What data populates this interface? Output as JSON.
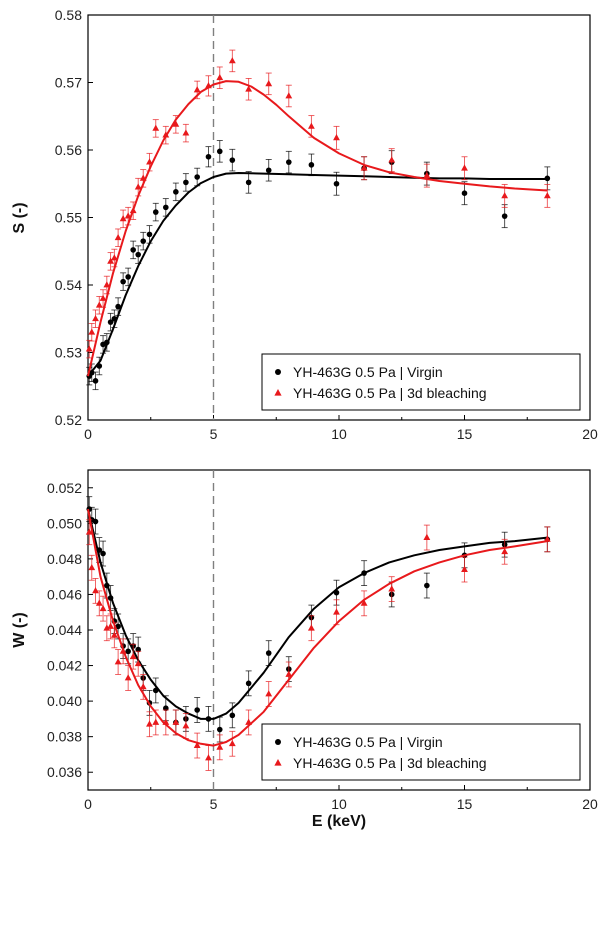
{
  "colors": {
    "virgin": "#000000",
    "bleaching": "#e8191c",
    "vline": "#7f7f7f"
  },
  "chart_data": [
    {
      "type": "scatter",
      "xlabel": "",
      "ylabel": "S (-)",
      "xlim": [
        0,
        20
      ],
      "ylim": [
        0.52,
        0.58
      ],
      "xticks": [
        "0",
        "5",
        "10",
        "15",
        "20"
      ],
      "yticks": [
        "0.52",
        "0.53",
        "0.54",
        "0.55",
        "0.56",
        "0.57",
        "0.58"
      ],
      "vline_x": 5,
      "legend": {
        "placement": "bottom-right",
        "entries": [
          "YH-463G 0.5 Pa | Virgin",
          "YH-463G 0.5 Pa | 3d bleaching"
        ]
      },
      "series": [
        {
          "name": "YH-463G 0.5 Pa | Virgin",
          "marker": "circle",
          "color": "#000000",
          "x": [
            0.05,
            0.15,
            0.3,
            0.45,
            0.6,
            0.75,
            0.9,
            1.05,
            1.2,
            1.4,
            1.6,
            1.8,
            2.0,
            2.2,
            2.45,
            2.7,
            3.1,
            3.5,
            3.9,
            4.35,
            4.8,
            5.25,
            5.75,
            6.4,
            7.2,
            8.0,
            8.9,
            9.9,
            11.0,
            12.1,
            13.5,
            15.0,
            16.6,
            18.3
          ],
          "y": [
            0.5265,
            0.527,
            0.5258,
            0.528,
            0.5312,
            0.5315,
            0.5345,
            0.535,
            0.5368,
            0.5405,
            0.5412,
            0.5452,
            0.5445,
            0.5465,
            0.5475,
            0.5508,
            0.5515,
            0.5538,
            0.5552,
            0.556,
            0.559,
            0.5598,
            0.5585,
            0.5552,
            0.557,
            0.5582,
            0.5578,
            0.555,
            0.5573,
            0.5582,
            0.5565,
            0.5536,
            0.5502,
            0.5558
          ],
          "err": [
            0.0013,
            0.0013,
            0.0013,
            0.0013,
            0.0013,
            0.0013,
            0.0013,
            0.0013,
            0.0013,
            0.0013,
            0.0013,
            0.0013,
            0.0013,
            0.0013,
            0.0013,
            0.0013,
            0.0013,
            0.0013,
            0.0013,
            0.0013,
            0.0015,
            0.0016,
            0.0016,
            0.0016,
            0.0016,
            0.0016,
            0.0016,
            0.0017,
            0.0017,
            0.0017,
            0.0017,
            0.0017,
            0.0017,
            0.0017
          ],
          "fit_x": [
            0,
            0.5,
            1,
            1.5,
            2,
            2.5,
            3,
            3.5,
            4,
            4.5,
            5,
            5.5,
            6,
            7,
            8,
            9,
            10,
            11,
            12,
            13,
            14,
            15,
            16,
            17,
            18.3
          ],
          "fit_y": [
            0.5265,
            0.5288,
            0.5335,
            0.5385,
            0.5428,
            0.5465,
            0.5495,
            0.5518,
            0.5537,
            0.5551,
            0.556,
            0.5565,
            0.5566,
            0.5565,
            0.5564,
            0.5563,
            0.5562,
            0.5561,
            0.556,
            0.5559,
            0.5558,
            0.5558,
            0.5557,
            0.5557,
            0.5557
          ]
        },
        {
          "name": "YH-463G 0.5 Pa | 3d bleaching",
          "marker": "triangle",
          "color": "#e8191c",
          "x": [
            0.05,
            0.15,
            0.3,
            0.45,
            0.6,
            0.75,
            0.9,
            1.05,
            1.2,
            1.4,
            1.6,
            1.8,
            2.0,
            2.2,
            2.45,
            2.7,
            3.1,
            3.5,
            3.9,
            4.35,
            4.8,
            5.25,
            5.75,
            6.4,
            7.2,
            8.0,
            8.9,
            9.9,
            11.0,
            12.1,
            13.5,
            15.0,
            16.6,
            18.3
          ],
          "y": [
            0.5305,
            0.533,
            0.535,
            0.537,
            0.538,
            0.54,
            0.5435,
            0.544,
            0.547,
            0.5498,
            0.5502,
            0.551,
            0.5545,
            0.5558,
            0.5582,
            0.5632,
            0.5622,
            0.5638,
            0.5625,
            0.5689,
            0.5695,
            0.5707,
            0.5732,
            0.569,
            0.5698,
            0.568,
            0.5635,
            0.5618,
            0.5573,
            0.5585,
            0.5562,
            0.5573,
            0.5532,
            0.5532
          ],
          "err": [
            0.0013,
            0.0013,
            0.0013,
            0.0013,
            0.0013,
            0.0013,
            0.0013,
            0.0013,
            0.0013,
            0.0013,
            0.0013,
            0.0013,
            0.0013,
            0.0013,
            0.0013,
            0.0013,
            0.0013,
            0.0013,
            0.0013,
            0.0013,
            0.0015,
            0.0016,
            0.0016,
            0.0016,
            0.0016,
            0.0016,
            0.0016,
            0.0017,
            0.0017,
            0.0017,
            0.0017,
            0.0017,
            0.0017,
            0.0017
          ],
          "fit_x": [
            0,
            0.5,
            1,
            1.5,
            2,
            2.5,
            3,
            3.5,
            4,
            4.5,
            5,
            5.5,
            6,
            6.5,
            7,
            7.5,
            8,
            9,
            10,
            11,
            12,
            13,
            14,
            15,
            16,
            17,
            18.3
          ],
          "fit_y": [
            0.5265,
            0.5345,
            0.5418,
            0.548,
            0.5532,
            0.5576,
            0.5614,
            0.5645,
            0.5668,
            0.5686,
            0.5697,
            0.5702,
            0.5701,
            0.5694,
            0.5682,
            0.5667,
            0.565,
            0.5618,
            0.5595,
            0.5578,
            0.5567,
            0.556,
            0.5554,
            0.555,
            0.5546,
            0.5543,
            0.554
          ]
        }
      ]
    },
    {
      "type": "scatter",
      "xlabel": "E (keV)",
      "ylabel": "W (-)",
      "xlim": [
        0,
        20
      ],
      "ylim": [
        0.035,
        0.053
      ],
      "xticks": [
        "0",
        "5",
        "10",
        "15",
        "20"
      ],
      "yticks": [
        "0.036",
        "0.038",
        "0.040",
        "0.042",
        "0.044",
        "0.046",
        "0.048",
        "0.050",
        "0.052"
      ],
      "vline_x": 5,
      "legend": {
        "placement": "bottom-right",
        "entries": [
          "YH-463G 0.5 Pa | Virgin",
          "YH-463G 0.5 Pa | 3d bleaching"
        ]
      },
      "series": [
        {
          "name": "YH-463G 0.5 Pa | Virgin",
          "marker": "circle",
          "color": "#000000",
          "x": [
            0.05,
            0.15,
            0.3,
            0.45,
            0.6,
            0.75,
            0.9,
            1.05,
            1.2,
            1.4,
            1.6,
            1.8,
            2.0,
            2.2,
            2.45,
            2.7,
            3.1,
            3.5,
            3.9,
            4.35,
            4.8,
            5.25,
            5.75,
            6.4,
            7.2,
            8.0,
            8.9,
            9.9,
            11.0,
            12.1,
            13.5,
            15.0,
            16.6,
            18.3
          ],
          "y": [
            0.0508,
            0.0502,
            0.0501,
            0.0485,
            0.0483,
            0.0465,
            0.0458,
            0.0445,
            0.0442,
            0.0431,
            0.0428,
            0.0431,
            0.0429,
            0.0413,
            0.0399,
            0.0406,
            0.0396,
            0.0388,
            0.039,
            0.0395,
            0.039,
            0.0384,
            0.0392,
            0.041,
            0.0427,
            0.0418,
            0.0447,
            0.0461,
            0.0472,
            0.046,
            0.0465,
            0.0482,
            0.0488,
            0.0491
          ],
          "err": [
            0.0007,
            0.0007,
            0.0007,
            0.0007,
            0.0007,
            0.0007,
            0.0007,
            0.0007,
            0.0007,
            0.0007,
            0.0007,
            0.0007,
            0.0007,
            0.0007,
            0.0007,
            0.0007,
            0.0007,
            0.0007,
            0.0007,
            0.0007,
            0.0007,
            0.0007,
            0.0007,
            0.0007,
            0.0007,
            0.0007,
            0.0007,
            0.0007,
            0.0007,
            0.0007,
            0.0007,
            0.0007,
            0.0007,
            0.0007
          ],
          "fit_x": [
            0,
            0.5,
            1,
            1.5,
            2,
            2.5,
            3,
            3.5,
            4,
            4.5,
            5,
            5.5,
            6,
            7,
            8,
            9,
            10,
            11,
            12,
            13,
            14,
            15,
            16,
            17,
            18.3
          ],
          "fit_y": [
            0.0508,
            0.0478,
            0.0455,
            0.0437,
            0.0423,
            0.0412,
            0.0403,
            0.0397,
            0.0393,
            0.039,
            0.039,
            0.0393,
            0.0399,
            0.0416,
            0.0436,
            0.0452,
            0.0464,
            0.0472,
            0.0478,
            0.0482,
            0.0485,
            0.0487,
            0.0489,
            0.049,
            0.0492
          ]
        },
        {
          "name": "YH-463G 0.5 Pa | 3d bleaching",
          "marker": "triangle",
          "color": "#e8191c",
          "x": [
            0.05,
            0.15,
            0.3,
            0.45,
            0.6,
            0.75,
            0.9,
            1.05,
            1.2,
            1.4,
            1.6,
            1.8,
            2.0,
            2.2,
            2.45,
            2.7,
            3.1,
            3.5,
            3.9,
            4.35,
            4.8,
            5.25,
            5.75,
            6.4,
            7.2,
            8.0,
            8.9,
            9.9,
            11.0,
            12.1,
            13.5,
            15.0,
            16.6,
            18.3
          ],
          "y": [
            0.0495,
            0.0475,
            0.0462,
            0.0455,
            0.0452,
            0.0441,
            0.0442,
            0.0437,
            0.0422,
            0.0428,
            0.0413,
            0.0425,
            0.0421,
            0.0408,
            0.0387,
            0.0388,
            0.0388,
            0.0388,
            0.0386,
            0.0375,
            0.0368,
            0.0374,
            0.0376,
            0.0388,
            0.0404,
            0.0415,
            0.0441,
            0.045,
            0.0455,
            0.0463,
            0.0492,
            0.0474,
            0.0484,
            0.0491
          ],
          "err": [
            0.0007,
            0.0007,
            0.0007,
            0.0007,
            0.0007,
            0.0007,
            0.0007,
            0.0007,
            0.0007,
            0.0007,
            0.0007,
            0.0007,
            0.0007,
            0.0007,
            0.0007,
            0.0007,
            0.0007,
            0.0007,
            0.0007,
            0.0007,
            0.0007,
            0.0007,
            0.0007,
            0.0007,
            0.0007,
            0.0007,
            0.0007,
            0.0007,
            0.0007,
            0.0007,
            0.0007,
            0.0007,
            0.0007,
            0.0007
          ],
          "fit_x": [
            0,
            0.5,
            1,
            1.5,
            2,
            2.5,
            3,
            3.5,
            4,
            4.5,
            5,
            5.5,
            6,
            7,
            8,
            9,
            10,
            11,
            12,
            13,
            14,
            15,
            16,
            17,
            18.3
          ],
          "fit_y": [
            0.0508,
            0.047,
            0.0445,
            0.0425,
            0.0409,
            0.0397,
            0.0388,
            0.0382,
            0.0378,
            0.0376,
            0.0375,
            0.0377,
            0.0381,
            0.0394,
            0.0412,
            0.043,
            0.0445,
            0.0457,
            0.0466,
            0.0473,
            0.0478,
            0.0482,
            0.0485,
            0.0487,
            0.049
          ]
        }
      ]
    }
  ]
}
